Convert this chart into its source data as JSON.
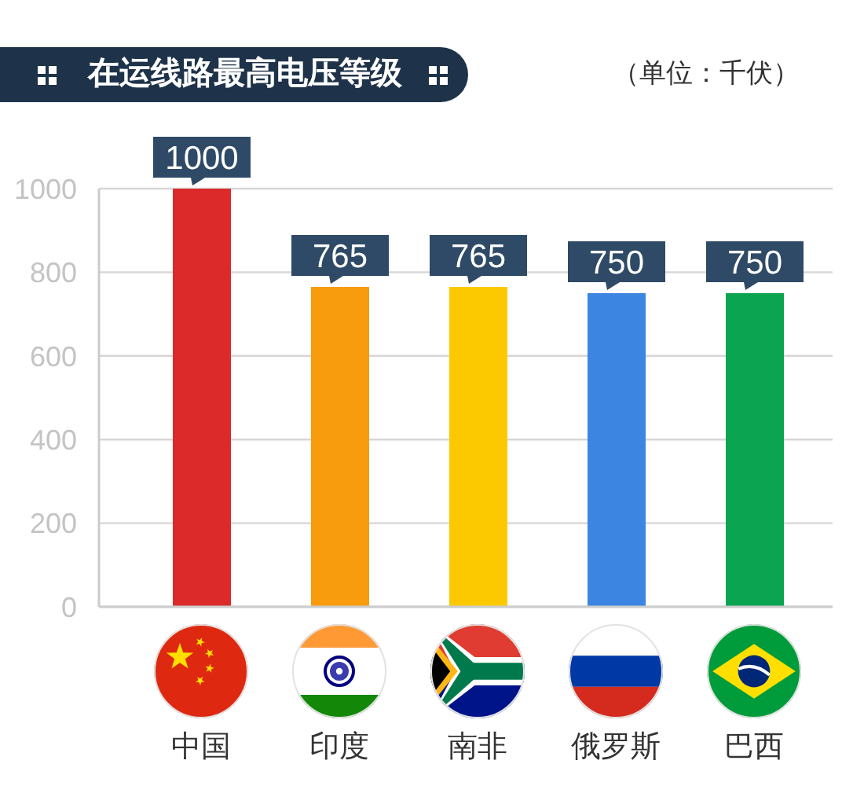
{
  "chart_data": {
    "type": "bar",
    "title": "在运线路最高电压等级",
    "ylabel": "（单位：千伏）",
    "categories": [
      "中国",
      "印度",
      "南非",
      "俄罗斯",
      "巴西"
    ],
    "values": [
      1000,
      765,
      765,
      750,
      750
    ],
    "colors": [
      "#dc2a2a",
      "#f89b0c",
      "#fcc900",
      "#3c85e0",
      "#0ba451"
    ],
    "ylim": [
      0,
      1000
    ],
    "yticks": [
      0,
      200,
      400,
      600,
      800,
      1000
    ],
    "grid": "y",
    "data_labels": true
  }
}
